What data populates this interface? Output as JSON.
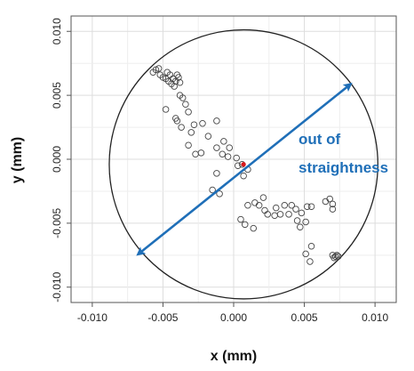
{
  "chart_data": {
    "type": "scatter",
    "xlabel": "x (mm)",
    "ylabel": "y (mm)",
    "xlim": [
      -0.0115,
      0.0115
    ],
    "ylim": [
      -0.0112,
      0.0112
    ],
    "xticks": [
      -0.01,
      -0.005,
      0.0,
      0.005,
      0.01
    ],
    "xtick_labels": [
      "-0.010",
      "-0.005",
      "0.000",
      "0.005",
      "0.010"
    ],
    "yticks": [
      -0.01,
      -0.005,
      0.0,
      0.005,
      0.01
    ],
    "ytick_labels": [
      "-0.010",
      "-0.005",
      "0.000",
      "0.005",
      "0.010"
    ],
    "grid": true,
    "points": [
      {
        "x": -0.0057,
        "y": 0.0068
      },
      {
        "x": -0.0055,
        "y": 0.007
      },
      {
        "x": -0.0053,
        "y": 0.0071
      },
      {
        "x": -0.0052,
        "y": 0.0066
      },
      {
        "x": -0.005,
        "y": 0.0064
      },
      {
        "x": -0.0048,
        "y": 0.0063
      },
      {
        "x": -0.0047,
        "y": 0.0068
      },
      {
        "x": -0.0046,
        "y": 0.0061
      },
      {
        "x": -0.0045,
        "y": 0.0066
      },
      {
        "x": -0.0044,
        "y": 0.0059
      },
      {
        "x": -0.0043,
        "y": 0.0063
      },
      {
        "x": -0.0042,
        "y": 0.0057
      },
      {
        "x": -0.0041,
        "y": 0.0061
      },
      {
        "x": -0.004,
        "y": 0.0066
      },
      {
        "x": -0.0039,
        "y": 0.0064
      },
      {
        "x": -0.0038,
        "y": 0.006
      },
      {
        "x": -0.0038,
        "y": 0.005
      },
      {
        "x": -0.0036,
        "y": 0.0048
      },
      {
        "x": -0.0034,
        "y": 0.0043
      },
      {
        "x": -0.0048,
        "y": 0.0039
      },
      {
        "x": -0.0041,
        "y": 0.0032
      },
      {
        "x": -0.004,
        "y": 0.003
      },
      {
        "x": -0.0037,
        "y": 0.0025
      },
      {
        "x": -0.0032,
        "y": 0.0037
      },
      {
        "x": -0.0028,
        "y": 0.0027
      },
      {
        "x": -0.0022,
        "y": 0.0028
      },
      {
        "x": -0.0012,
        "y": 0.003
      },
      {
        "x": -0.003,
        "y": 0.0021
      },
      {
        "x": -0.0018,
        "y": 0.0018
      },
      {
        "x": -0.0007,
        "y": 0.0014
      },
      {
        "x": -0.0032,
        "y": 0.0011
      },
      {
        "x": -0.0012,
        "y": 0.0009
      },
      {
        "x": -0.0003,
        "y": 0.0009
      },
      {
        "x": -0.0023,
        "y": 0.0005
      },
      {
        "x": -0.0027,
        "y": 0.0004
      },
      {
        "x": -0.0008,
        "y": 0.0004
      },
      {
        "x": -0.0004,
        "y": 0.0002
      },
      {
        "x": 0.0002,
        "y": 0.0001
      },
      {
        "x": 0.0006,
        "y": -0.0004
      },
      {
        "x": 0.001,
        "y": -0.0008
      },
      {
        "x": 0.0003,
        "y": -0.0005
      },
      {
        "x": 0.0007,
        "y": -0.0013
      },
      {
        "x": -0.0012,
        "y": -0.0011
      },
      {
        "x": -0.0015,
        "y": -0.0024
      },
      {
        "x": -0.001,
        "y": -0.0027
      },
      {
        "x": 0.0015,
        "y": -0.0034
      },
      {
        "x": 0.0018,
        "y": -0.0036
      },
      {
        "x": 0.0021,
        "y": -0.003
      },
      {
        "x": 0.0024,
        "y": -0.0043
      },
      {
        "x": 0.003,
        "y": -0.0038
      },
      {
        "x": 0.0036,
        "y": -0.0036
      },
      {
        "x": 0.0041,
        "y": -0.0036
      },
      {
        "x": 0.0044,
        "y": -0.0039
      },
      {
        "x": 0.0048,
        "y": -0.0042
      },
      {
        "x": 0.0052,
        "y": -0.0037
      },
      {
        "x": 0.0055,
        "y": -0.0037
      },
      {
        "x": 0.0065,
        "y": -0.0033
      },
      {
        "x": 0.0068,
        "y": -0.0031
      },
      {
        "x": 0.007,
        "y": -0.0035
      },
      {
        "x": 0.007,
        "y": -0.0039
      },
      {
        "x": 0.0022,
        "y": -0.004
      },
      {
        "x": 0.001,
        "y": -0.0036
      },
      {
        "x": 0.0005,
        "y": -0.0047
      },
      {
        "x": 0.0008,
        "y": -0.0051
      },
      {
        "x": 0.0014,
        "y": -0.0054
      },
      {
        "x": 0.0029,
        "y": -0.0044
      },
      {
        "x": 0.0033,
        "y": -0.0043
      },
      {
        "x": 0.0039,
        "y": -0.0043
      },
      {
        "x": 0.0045,
        "y": -0.0048
      },
      {
        "x": 0.0047,
        "y": -0.0053
      },
      {
        "x": 0.0051,
        "y": -0.0049
      },
      {
        "x": 0.0055,
        "y": -0.0068
      },
      {
        "x": 0.0051,
        "y": -0.0074
      },
      {
        "x": 0.0054,
        "y": -0.008
      },
      {
        "x": 0.007,
        "y": -0.0075
      },
      {
        "x": 0.0071,
        "y": -0.0077
      },
      {
        "x": 0.0072,
        "y": -0.0076
      },
      {
        "x": 0.0073,
        "y": -0.0075
      },
      {
        "x": 0.0074,
        "y": -0.0076
      }
    ],
    "center": {
      "x": 0.0007,
      "y": -0.0004,
      "color": "#d7191c"
    },
    "circle": {
      "cx": 0.0007,
      "cy": -0.0004,
      "r": 0.0095,
      "color": "#222222"
    },
    "arrow": {
      "x1": -0.0065,
      "y1": -0.0072,
      "x2": 0.0083,
      "y2": 0.0059,
      "color": "#1f6fb8"
    },
    "annotation": {
      "lines": [
        "out of",
        "straightness"
      ],
      "color": "#1f6fb8"
    }
  }
}
